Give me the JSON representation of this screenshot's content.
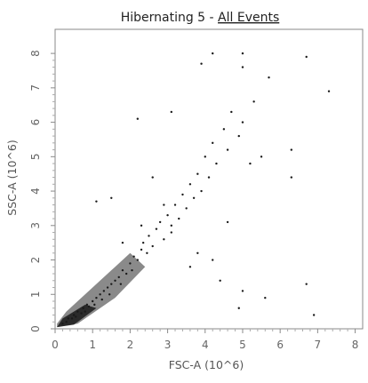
{
  "chart_data": {
    "type": "scatter",
    "title": "Hibernating 5 - All Events",
    "title_prefix": "Hibernating 5 - ",
    "title_link": "All Events",
    "xlabel": "FSC-A (10^6)",
    "ylabel": "SSC-A (10^6)",
    "xlim": [
      0,
      8.2
    ],
    "ylim": [
      0,
      8.7
    ],
    "x_ticks": [
      0,
      1,
      2,
      3,
      4,
      5,
      6,
      7,
      8
    ],
    "y_ticks": [
      0,
      1,
      2,
      3,
      4,
      5,
      6,
      7,
      8
    ],
    "x_tick_labels": [
      "0",
      "1",
      "2",
      "3",
      "4",
      "5",
      "6",
      "7",
      "8"
    ],
    "y_tick_labels": [
      "0",
      "1",
      "2",
      "3",
      "4",
      "5",
      "6",
      "7",
      "8"
    ],
    "grid": false,
    "legend": "none",
    "point_color": "#1a1a1a",
    "series": [
      {
        "values": [
          [
            0.2,
            0.15
          ],
          [
            0.3,
            0.2
          ],
          [
            0.35,
            0.3
          ],
          [
            0.45,
            0.3
          ],
          [
            0.5,
            0.4
          ],
          [
            0.55,
            0.35
          ],
          [
            0.6,
            0.5
          ],
          [
            0.7,
            0.45
          ],
          [
            0.75,
            0.6
          ],
          [
            0.8,
            0.5
          ],
          [
            0.85,
            0.7
          ],
          [
            0.9,
            0.65
          ],
          [
            1.0,
            0.8
          ],
          [
            1.05,
            0.7
          ],
          [
            1.1,
            0.9
          ],
          [
            1.2,
            1.0
          ],
          [
            1.25,
            0.85
          ],
          [
            1.3,
            1.1
          ],
          [
            1.4,
            1.2
          ],
          [
            1.45,
            1.0
          ],
          [
            1.5,
            1.3
          ],
          [
            1.6,
            1.4
          ],
          [
            1.7,
            1.5
          ],
          [
            1.75,
            1.3
          ],
          [
            1.8,
            1.7
          ],
          [
            1.9,
            1.6
          ],
          [
            2.0,
            1.9
          ],
          [
            2.05,
            1.7
          ],
          [
            2.1,
            2.1
          ],
          [
            2.2,
            2.0
          ],
          [
            2.3,
            2.3
          ],
          [
            2.35,
            2.5
          ],
          [
            2.45,
            2.2
          ],
          [
            2.5,
            2.7
          ],
          [
            2.6,
            2.4
          ],
          [
            2.7,
            2.9
          ],
          [
            2.8,
            3.1
          ],
          [
            2.9,
            2.6
          ],
          [
            3.0,
            3.3
          ],
          [
            3.1,
            3.0
          ],
          [
            3.2,
            3.6
          ],
          [
            3.3,
            3.2
          ],
          [
            3.4,
            3.9
          ],
          [
            3.5,
            3.5
          ],
          [
            3.6,
            4.2
          ],
          [
            3.7,
            3.8
          ],
          [
            3.8,
            4.5
          ],
          [
            3.9,
            4.0
          ],
          [
            4.0,
            5.0
          ],
          [
            4.1,
            4.4
          ],
          [
            4.2,
            5.4
          ],
          [
            4.3,
            4.8
          ],
          [
            4.5,
            5.8
          ],
          [
            4.6,
            5.2
          ],
          [
            4.7,
            6.3
          ],
          [
            4.9,
            5.6
          ],
          [
            5.0,
            6.0
          ],
          [
            5.2,
            4.8
          ],
          [
            5.3,
            6.6
          ],
          [
            5.5,
            5.0
          ],
          [
            6.3,
            4.4
          ],
          [
            6.3,
            5.2
          ],
          [
            3.9,
            7.7
          ],
          [
            4.2,
            8.0
          ],
          [
            5.0,
            8.0
          ],
          [
            6.7,
            7.9
          ],
          [
            7.3,
            6.9
          ],
          [
            5.7,
            7.3
          ],
          [
            5.0,
            7.6
          ],
          [
            2.2,
            6.1
          ],
          [
            3.1,
            6.3
          ],
          [
            1.5,
            3.8
          ],
          [
            1.1,
            3.7
          ],
          [
            2.6,
            4.4
          ],
          [
            3.8,
            2.2
          ],
          [
            4.2,
            2.0
          ],
          [
            4.4,
            1.4
          ],
          [
            5.0,
            1.1
          ],
          [
            4.9,
            0.6
          ],
          [
            5.6,
            0.9
          ],
          [
            3.6,
            1.8
          ],
          [
            6.9,
            0.4
          ],
          [
            6.7,
            1.3
          ],
          [
            3.1,
            2.8
          ],
          [
            2.9,
            3.6
          ],
          [
            4.6,
            3.1
          ],
          [
            2.3,
            3.0
          ],
          [
            1.8,
            2.5
          ]
        ]
      }
    ]
  }
}
